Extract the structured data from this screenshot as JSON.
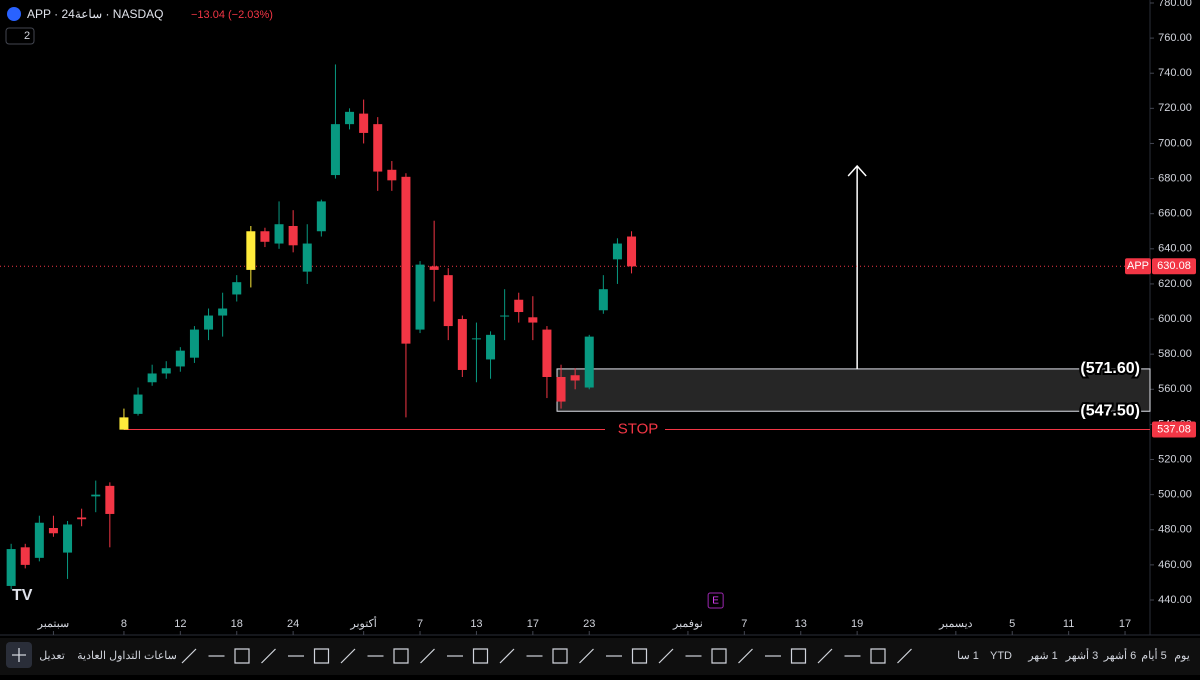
{
  "header": {
    "symbol": "APP · 24ساعة · NASDAQ",
    "change": "−13.04 (−2.03%)",
    "badge": "2"
  },
  "chart_data": {
    "type": "candlestick",
    "x": [
      -8,
      -7,
      -6,
      -5,
      -4,
      -3,
      -2,
      -1,
      0,
      1,
      2,
      3,
      4,
      5,
      6,
      7,
      8,
      9,
      10,
      11,
      12,
      13,
      14,
      15,
      16,
      17,
      18,
      19,
      20,
      21,
      22,
      23,
      24,
      25,
      26,
      27,
      28,
      29,
      30,
      31,
      32,
      33,
      34,
      35,
      36
    ],
    "open": [
      448,
      470,
      464,
      481,
      467,
      487,
      499,
      505,
      537,
      546,
      564,
      569,
      573,
      578,
      594,
      602,
      614,
      628,
      650,
      643,
      653,
      627,
      650,
      682,
      711,
      717,
      711,
      685,
      681,
      594,
      630,
      625,
      600,
      589,
      577,
      602,
      611,
      601,
      594,
      567,
      568,
      561,
      605,
      634,
      647
    ],
    "high": [
      472,
      472,
      488,
      488,
      485,
      492,
      508,
      507,
      549,
      561,
      574,
      576,
      584,
      596,
      606,
      615,
      625,
      653,
      652,
      667,
      662,
      654,
      668,
      745,
      720,
      725,
      715,
      690,
      683,
      633,
      656,
      629,
      602,
      598,
      593,
      617,
      615,
      613,
      596,
      574,
      572,
      591,
      625,
      646,
      650
    ],
    "low": [
      446,
      458,
      462,
      476,
      452,
      482,
      490,
      470,
      537,
      545,
      562,
      566,
      570,
      575,
      588,
      590,
      610,
      618,
      641,
      640,
      638,
      620,
      647,
      680,
      708,
      700,
      673,
      673,
      544,
      592,
      610,
      588,
      567,
      564,
      566,
      588,
      598,
      588,
      555,
      549,
      560,
      560,
      603,
      620,
      626
    ],
    "close": [
      469,
      460,
      484,
      478,
      483,
      486,
      500,
      489,
      544,
      557,
      569,
      572,
      582,
      594,
      602,
      606,
      621,
      650,
      644,
      654,
      642,
      643,
      667,
      711,
      718,
      706,
      684,
      679,
      586,
      631,
      628,
      596,
      571,
      589,
      591,
      602,
      604,
      598,
      567,
      553,
      565,
      590,
      617,
      643,
      630
    ],
    "up_color": "#089981",
    "down_color": "#f23645",
    "highlight_color": "#ffeb3b",
    "highlight": [
      8,
      17
    ],
    "xlim": [
      -8.79,
      72.77
    ],
    "ylim": [
      434.3,
      781.7
    ],
    "xticks": [
      {
        "value": -5,
        "label": "سبتمبر"
      },
      {
        "value": 0,
        "label": "8"
      },
      {
        "value": 4,
        "label": "12"
      },
      {
        "value": 8,
        "label": "18"
      },
      {
        "value": 12,
        "label": "24"
      },
      {
        "value": 17,
        "label": "أكتوبر"
      },
      {
        "value": 21,
        "label": "7"
      },
      {
        "value": 25,
        "label": "13"
      },
      {
        "value": 29,
        "label": "17"
      },
      {
        "value": 33,
        "label": "23"
      },
      {
        "value": 40,
        "label": "نوفمبر"
      },
      {
        "value": 44,
        "label": "7"
      },
      {
        "value": 48,
        "label": "13"
      },
      {
        "value": 52,
        "label": "19"
      },
      {
        "value": 59,
        "label": "ديسمبر"
      },
      {
        "value": 63,
        "label": "5"
      },
      {
        "value": 67,
        "label": "11"
      },
      {
        "value": 71,
        "label": "17"
      }
    ],
    "yticks": [
      {
        "value": 440,
        "label": "440.00"
      },
      {
        "value": 460,
        "label": "460.00"
      },
      {
        "value": 480,
        "label": "480.00"
      },
      {
        "value": 500,
        "label": "500.00"
      },
      {
        "value": 520,
        "label": "520.00"
      },
      {
        "value": 540,
        "label": "540.00"
      },
      {
        "value": 560,
        "label": "560.00"
      },
      {
        "value": 580,
        "label": "580.00"
      },
      {
        "value": 600,
        "label": "600.00"
      },
      {
        "value": 620,
        "label": "620.00"
      },
      {
        "value": 640,
        "label": "640.00"
      },
      {
        "value": 660,
        "label": "660.00"
      },
      {
        "value": 680,
        "label": "680.00"
      },
      {
        "value": 700,
        "label": "700.00"
      },
      {
        "value": 720,
        "label": "720.00"
      },
      {
        "value": 740,
        "label": "740.00"
      },
      {
        "value": 760,
        "label": "760.00"
      },
      {
        "value": 780,
        "label": "780.00"
      }
    ],
    "last_price": {
      "value": 630.08,
      "symbol": "APP"
    },
    "stop": {
      "value": 537.08,
      "label": "STOP"
    },
    "zone": {
      "values": [
        571.6,
        547.5
      ],
      "value_labels": [
        "(571.60)",
        "(547.50)"
      ]
    },
    "event": "E"
  },
  "toolbar": {
    "left": [
      "تعديل",
      "ساعات التداول العادية"
    ],
    "right": [
      "1 سا",
      "YTD",
      "1 شهر",
      "3 أشهر",
      "6 أشهر",
      "5 أيام",
      "يوم"
    ]
  }
}
